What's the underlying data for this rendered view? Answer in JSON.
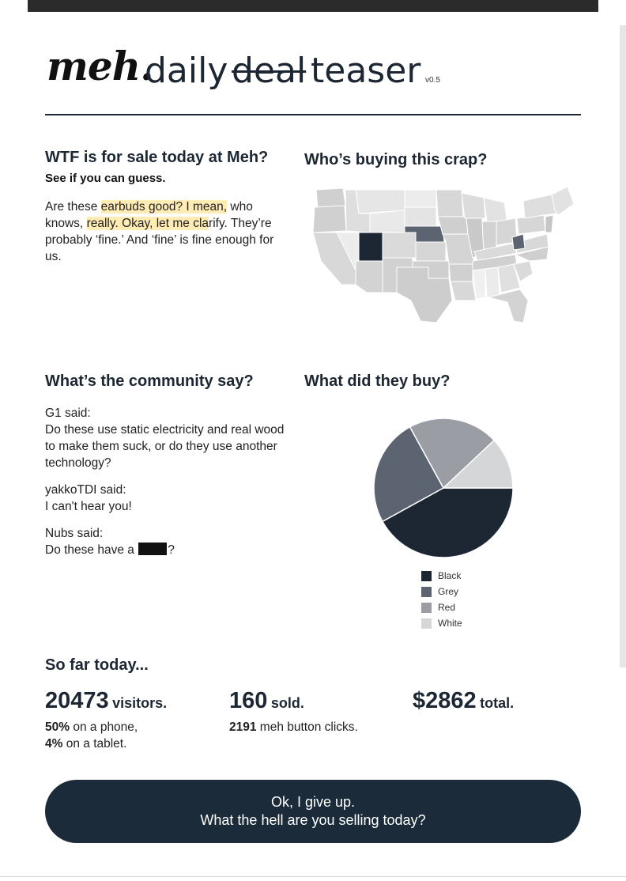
{
  "header": {
    "logo": "meh.",
    "title_daily": "daily",
    "title_deal": "deal",
    "title_teaser": "teaser",
    "version": "v0.5"
  },
  "sale_section": {
    "heading": "WTF is for sale today at Meh?",
    "subheading": "See if you can guess.",
    "p1_a": "Are these ",
    "p1_hl1": "earbuds good? I mean,",
    "p1_b": " who knows, ",
    "p1_hl2": "really. Okay, let me cla",
    "p1_c": "rify. They’re probably ‘fine.’ And ‘fine’ is fine enough for us."
  },
  "buyers_section": {
    "heading": "Who’s buying this crap?"
  },
  "community_section": {
    "heading": "What’s the community say?",
    "comments": [
      {
        "author": "G1 said:",
        "text": "Do these use static electricity and real wood to make them suck, or do they use another technology?"
      },
      {
        "author": "yakkoTDI said:",
        "text": "I can't hear you!"
      },
      {
        "author": "Nubs said:",
        "text_before": "Do these have a ",
        "text_after": "?"
      }
    ]
  },
  "purchase_section": {
    "heading": "What did they buy?",
    "legend": [
      {
        "label": "Black",
        "color": "#1c2733"
      },
      {
        "label": "Grey",
        "color": "#5b6470"
      },
      {
        "label": "Red",
        "color": "#9a9ea4"
      },
      {
        "label": "White",
        "color": "#d4d6d8"
      }
    ]
  },
  "stats": {
    "heading": "So far today...",
    "visitors_value": "20473",
    "visitors_unit": "visitors.",
    "phone_pct": "50%",
    "phone_text": "on a phone,",
    "tablet_pct": "4%",
    "tablet_text": "on a tablet.",
    "sold_value": "160",
    "sold_unit": "sold.",
    "clicks_value": "2191",
    "clicks_text": "meh button clicks.",
    "total_value": "$2862",
    "total_unit": "total."
  },
  "cta": {
    "line1": "Ok, I give up.",
    "line2": "What the hell are you selling today?"
  },
  "chart_data": {
    "type": "pie",
    "categories": [
      "Black",
      "Grey",
      "Red",
      "White"
    ],
    "values": [
      42,
      25,
      21,
      12
    ],
    "colors": [
      "#1c2733",
      "#5b6470",
      "#9a9ea4",
      "#d4d6d8"
    ],
    "legend_position": "bottom"
  }
}
